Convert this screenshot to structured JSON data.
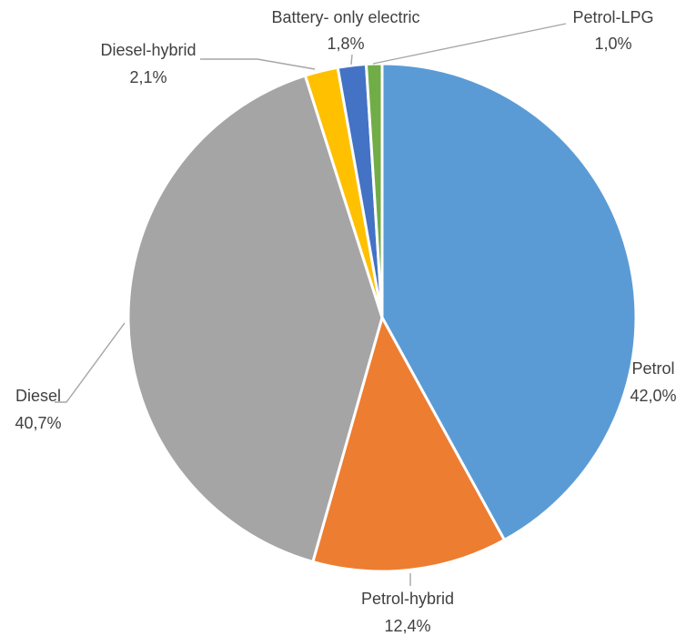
{
  "chart_data": {
    "type": "pie",
    "categories": [
      "Petrol",
      "Petrol-hybrid",
      "Diesel",
      "Diesel-hybrid",
      "Battery- only electric",
      "Petrol-LPG"
    ],
    "values": [
      42.0,
      12.4,
      40.7,
      2.1,
      1.8,
      1.0
    ],
    "value_labels": [
      "42,0%",
      "12,4%",
      "40,7%",
      "2,1%",
      "1,8%",
      "1,0%"
    ],
    "colors": [
      "#5b9bd5",
      "#ed7d31",
      "#a5a5a5",
      "#ffc000",
      "#4472c4",
      "#70ad47"
    ],
    "start_angle_deg": 0,
    "direction": "clockwise",
    "legend": "none",
    "data_labels": "outside-with-leader-lines"
  }
}
